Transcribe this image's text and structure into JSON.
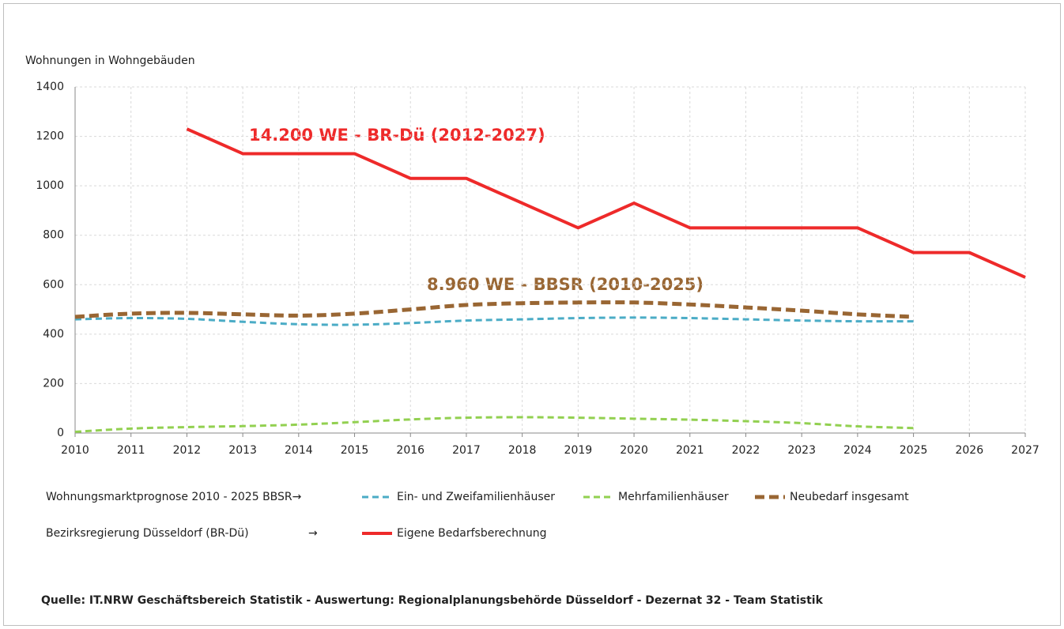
{
  "chart_data": {
    "type": "line",
    "y_label": "Wohnungen in Wohngebäuden",
    "x": [
      2010,
      2011,
      2012,
      2013,
      2014,
      2015,
      2016,
      2017,
      2018,
      2019,
      2020,
      2021,
      2022,
      2023,
      2024,
      2025,
      2026,
      2027
    ],
    "xlim": [
      2010,
      2027
    ],
    "xticks": [
      2010,
      2011,
      2012,
      2013,
      2014,
      2015,
      2016,
      2017,
      2018,
      2019,
      2020,
      2021,
      2022,
      2023,
      2024,
      2025,
      2026,
      2027
    ],
    "ylim": [
      0,
      1400
    ],
    "yticks": [
      0,
      200,
      400,
      600,
      800,
      1000,
      1200,
      1400
    ],
    "grid": true,
    "series": [
      {
        "name": "Ein- und Zweifamilienhäuser",
        "color": "#4bacc6",
        "dash": "dashed",
        "values": [
          460,
          465,
          462,
          450,
          440,
          438,
          445,
          455,
          460,
          465,
          467,
          465,
          460,
          455,
          452,
          452,
          null,
          null
        ]
      },
      {
        "name": "Mehrfamilienhäuser",
        "color": "#92d050",
        "dash": "dashed",
        "values": [
          5,
          18,
          24,
          28,
          34,
          44,
          55,
          62,
          64,
          62,
          58,
          54,
          48,
          40,
          27,
          20,
          null,
          null
        ]
      },
      {
        "name": "Neubedarf insgesamt",
        "color": "#996633",
        "dash": "dashed-thick",
        "values": [
          470,
          483,
          486,
          480,
          475,
          483,
          500,
          518,
          525,
          528,
          528,
          520,
          508,
          495,
          480,
          470,
          null,
          null
        ]
      },
      {
        "name": "Eigene Bedarfsberechnung",
        "color": "#ee2a2a",
        "dash": "solid",
        "values": [
          null,
          null,
          1230,
          1130,
          1130,
          1130,
          1030,
          1030,
          930,
          830,
          930,
          830,
          830,
          830,
          830,
          730,
          730,
          630
        ]
      }
    ],
    "annotations": [
      "14.200 WE - BR-Dü (2012-2027)",
      "8.960 WE - BBSR (2010-2025)"
    ],
    "legend_groups": [
      "Wohnungsmarktprognose 2010 - 2025 BBSR→",
      "Bezirksregierung Düsseldorf (BR-Dü)",
      "→"
    ],
    "source": "Quelle: IT.NRW Geschäftsbereich Statistik - Auswertung: Regionalplanungsbehörde  Düsseldorf - Dezernat 32 - Team Statistik"
  }
}
